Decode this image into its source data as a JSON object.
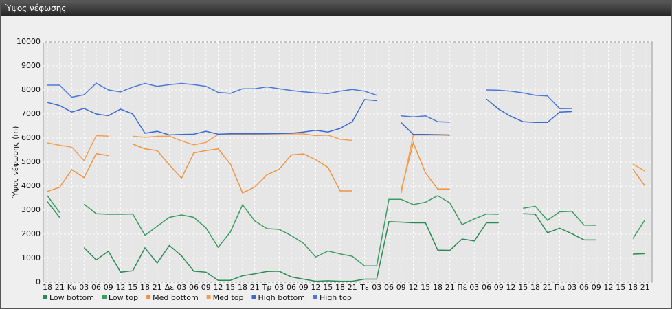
{
  "chart_data": {
    "type": "line",
    "title": "Ύψος νέφωσης",
    "y_label": "Ύψος νέφωσης (m)",
    "categories": [
      "18",
      "21",
      "Κυ",
      "03",
      "06",
      "09",
      "12",
      "15",
      "18",
      "21",
      "Δε",
      "03",
      "06",
      "09",
      "12",
      "15",
      "18",
      "21",
      "Τρ",
      "03",
      "06",
      "09",
      "12",
      "15",
      "18",
      "21",
      "Τε",
      "03",
      "06",
      "09",
      "12",
      "15",
      "18",
      "21",
      "Πέ",
      "03",
      "06",
      "09",
      "12",
      "15",
      "18",
      "21",
      "Πα",
      "03",
      "06",
      "09",
      "12",
      "15",
      "18",
      "21"
    ],
    "ylim": [
      0,
      10000
    ],
    "yticks": [
      0,
      1000,
      2000,
      3000,
      4000,
      5000,
      6000,
      7000,
      8000,
      9000,
      10000
    ],
    "grid": true,
    "series": [
      {
        "name": "Low bottom",
        "color": "#2a8a55",
        "values": [
          3350,
          2700,
          null,
          1440,
          930,
          1290,
          420,
          480,
          1430,
          800,
          1530,
          1100,
          460,
          420,
          80,
          80,
          270,
          350,
          450,
          460,
          220,
          130,
          40,
          60,
          40,
          40,
          130,
          130,
          2520,
          2500,
          2470,
          2470,
          1340,
          1330,
          1800,
          1720,
          2470,
          2470,
          null,
          2850,
          2830,
          2060,
          2250,
          2020,
          1760,
          1760,
          null,
          null,
          1170,
          1190
        ]
      },
      {
        "name": "Low top",
        "color": "#3a9c62",
        "values": [
          3600,
          2900,
          null,
          3250,
          2850,
          2830,
          2830,
          2840,
          1950,
          2330,
          2700,
          2800,
          2700,
          2260,
          1450,
          2090,
          3220,
          2550,
          2230,
          2200,
          1940,
          1620,
          1050,
          1300,
          1180,
          1080,
          680,
          680,
          3450,
          3450,
          3230,
          3330,
          3600,
          3300,
          2400,
          2630,
          2840,
          2830,
          null,
          3080,
          3160,
          2580,
          2930,
          2950,
          2380,
          2370,
          null,
          null,
          1820,
          2600
        ]
      },
      {
        "name": "Med bottom",
        "color": "#ee9440",
        "values": [
          3780,
          3950,
          4680,
          4350,
          5350,
          5270,
          null,
          5750,
          5550,
          5480,
          4880,
          4330,
          5380,
          5480,
          5550,
          4920,
          3720,
          3960,
          4470,
          4700,
          5300,
          5340,
          5100,
          4780,
          3800,
          3800,
          null,
          null,
          null,
          3820,
          5800,
          4550,
          3880,
          3880,
          null,
          null,
          null,
          null,
          null,
          null,
          null,
          null,
          null,
          null,
          null,
          null,
          null,
          null,
          4700,
          4000
        ]
      },
      {
        "name": "Med top",
        "color": "#f2a050",
        "values": [
          5800,
          5700,
          5620,
          5070,
          6100,
          6080,
          null,
          6080,
          6030,
          6070,
          6080,
          5880,
          5720,
          5820,
          6150,
          6150,
          6160,
          6160,
          6170,
          6170,
          6180,
          6170,
          6100,
          6120,
          5950,
          5900,
          null,
          null,
          null,
          3700,
          6120,
          6130,
          6120,
          6110,
          null,
          null,
          null,
          null,
          null,
          null,
          null,
          null,
          null,
          null,
          null,
          null,
          null,
          null,
          4920,
          4620
        ]
      },
      {
        "name": "High bottom",
        "color": "#3a6ad0",
        "values": [
          7480,
          7350,
          7080,
          7230,
          7000,
          6930,
          7200,
          7000,
          6200,
          6280,
          6130,
          6150,
          6160,
          6280,
          6160,
          6180,
          6180,
          6180,
          6180,
          6190,
          6200,
          6250,
          6320,
          6250,
          6400,
          6680,
          7600,
          7560,
          null,
          6640,
          6150,
          6150,
          6140,
          6130,
          null,
          null,
          7620,
          7200,
          6900,
          6680,
          6650,
          6650,
          7080,
          7100,
          null,
          null,
          null,
          null,
          null,
          null
        ]
      },
      {
        "name": "High top",
        "color": "#4a78dc",
        "values": [
          8200,
          8200,
          7700,
          7800,
          8280,
          8000,
          7920,
          8120,
          8270,
          8150,
          8220,
          8270,
          8220,
          8150,
          7900,
          7860,
          8050,
          8050,
          8130,
          8050,
          7980,
          7920,
          7880,
          7850,
          7950,
          8020,
          7950,
          7780,
          null,
          6920,
          6880,
          6920,
          6680,
          6660,
          null,
          null,
          8000,
          7990,
          7950,
          7880,
          7780,
          7750,
          7220,
          7230,
          null,
          null,
          null,
          null,
          null,
          null
        ]
      }
    ]
  }
}
